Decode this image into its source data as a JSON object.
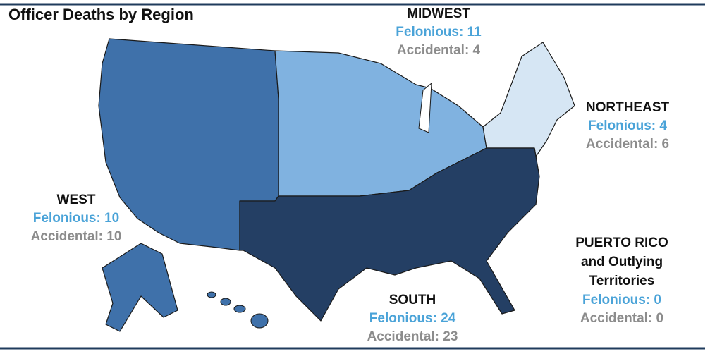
{
  "header": {
    "title": "Officer Deaths by Region"
  },
  "regions": [
    {
      "name": "MIDWEST",
      "felonious": "Felonious: 11",
      "accidental": "Accidental: 4"
    },
    {
      "name": "NORTHEAST",
      "felonious": "Felonious: 4",
      "accidental": "Accidental: 6"
    },
    {
      "name": "WEST",
      "felonious": "Felonious: 10",
      "accidental": "Accidental: 10"
    },
    {
      "name": "SOUTH",
      "felonious": "Felonious: 24",
      "accidental": "Accidental: 23"
    },
    {
      "name": "PUERTO RICO and Outlying Territories",
      "name_lines": [
        "PUERTO RICO",
        "and Outlying",
        "Territories"
      ],
      "felonious": "Felonious: 0",
      "accidental": "Accidental: 0"
    }
  ]
}
